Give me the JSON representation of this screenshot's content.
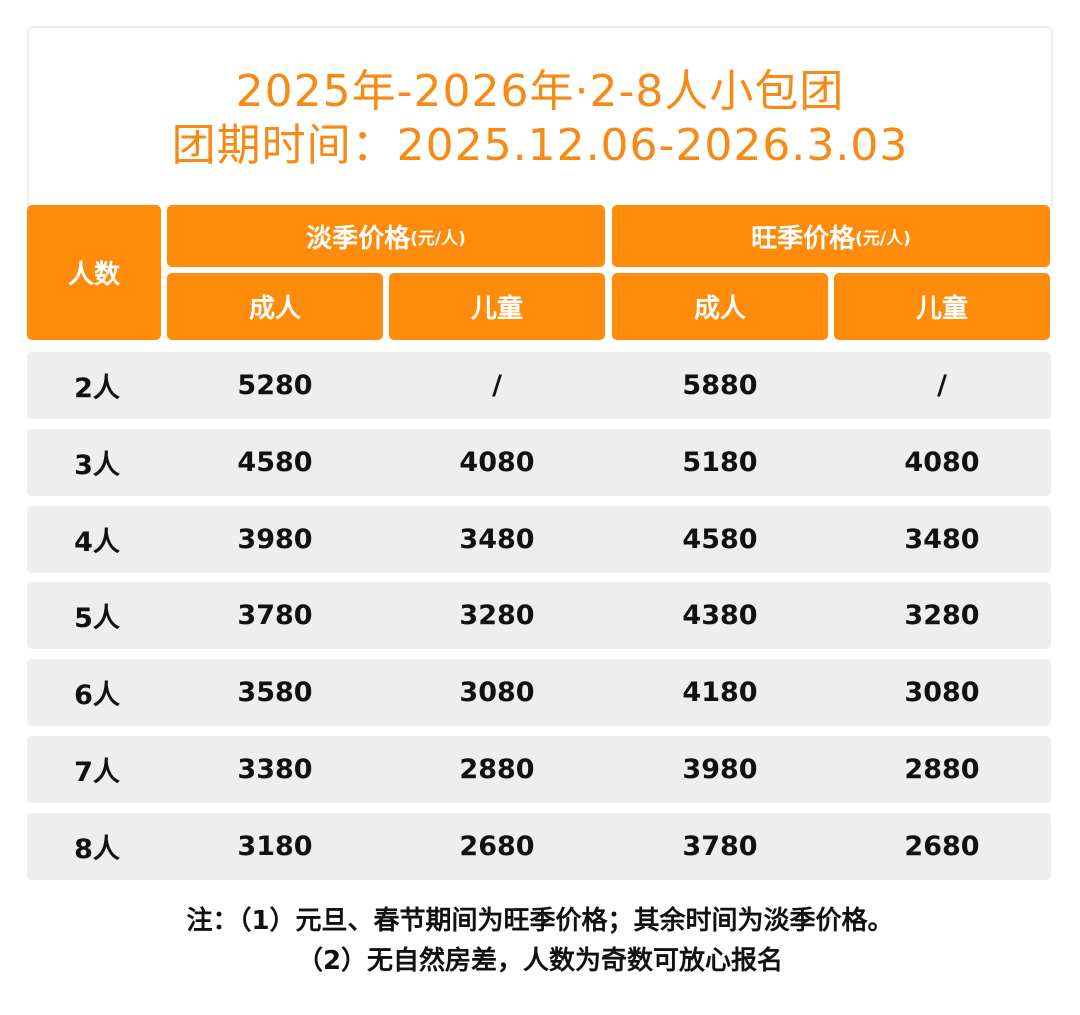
{
  "title": {
    "line1": "2025年-2026年·2-8人小包团",
    "line2": "团期时间：2025.12.06-2026.3.03"
  },
  "colors": {
    "accent": "#ff8b0b",
    "title": "#f68a14",
    "row_bg": "#eeeeee"
  },
  "header": {
    "people": "人数",
    "low_season": "淡季价格",
    "high_season": "旺季价格",
    "unit": "(元/人)",
    "adult": "成人",
    "child": "儿童"
  },
  "rows": [
    {
      "people": "2人",
      "low_adult": "5280",
      "low_child": "/",
      "high_adult": "5880",
      "high_child": "/"
    },
    {
      "people": "3人",
      "low_adult": "4580",
      "low_child": "4080",
      "high_adult": "5180",
      "high_child": "4080"
    },
    {
      "people": "4人",
      "low_adult": "3980",
      "low_child": "3480",
      "high_adult": "4580",
      "high_child": "3480"
    },
    {
      "people": "5人",
      "low_adult": "3780",
      "low_child": "3280",
      "high_adult": "4380",
      "high_child": "3280"
    },
    {
      "people": "6人",
      "low_adult": "3580",
      "low_child": "3080",
      "high_adult": "4180",
      "high_child": "3080"
    },
    {
      "people": "7人",
      "low_adult": "3380",
      "low_child": "2880",
      "high_adult": "3980",
      "high_child": "2880"
    },
    {
      "people": "8人",
      "low_adult": "3180",
      "low_child": "2680",
      "high_adult": "3780",
      "high_child": "2680"
    }
  ],
  "notes": {
    "line1": "注：（1）元旦、春节期间为旺季价格；其余时间为淡季价格。",
    "line2": "（2）无自然房差，人数为奇数可放心报名"
  }
}
